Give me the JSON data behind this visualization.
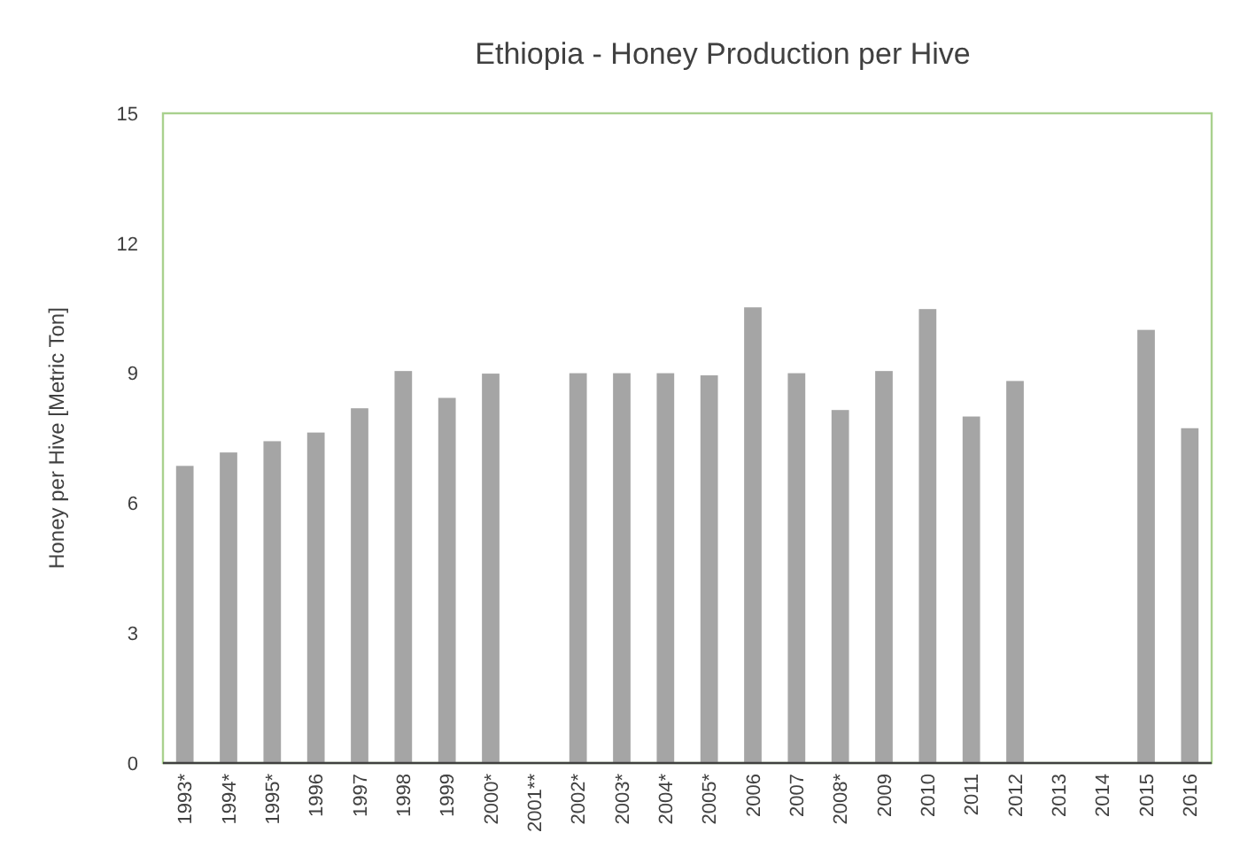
{
  "chart_data": {
    "type": "bar",
    "title": "Ethiopia - Honey Production per Hive",
    "ylabel": "Honey per Hive [Metric Ton]",
    "categories": [
      "1993*",
      "1994*",
      "1995*",
      "1996",
      "1997",
      "1998",
      "1999",
      "2000*",
      "2001**",
      "2002*",
      "2003*",
      "2004*",
      "2005*",
      "2006",
      "2007",
      "2008*",
      "2009",
      "2010",
      "2011",
      "2012",
      "2013",
      "2014",
      "2015",
      "2016"
    ],
    "values": [
      6.86,
      7.17,
      7.43,
      7.63,
      8.19,
      9.05,
      8.43,
      8.99,
      null,
      9.0,
      9.0,
      9.0,
      8.95,
      10.52,
      9.0,
      8.15,
      9.05,
      10.48,
      8.0,
      8.82,
      null,
      null,
      10.0,
      7.73
    ],
    "color": "#a5a5a5",
    "ylim": [
      0,
      15
    ],
    "yticks": [
      0,
      3,
      6,
      9,
      12,
      15
    ],
    "grid": false
  }
}
